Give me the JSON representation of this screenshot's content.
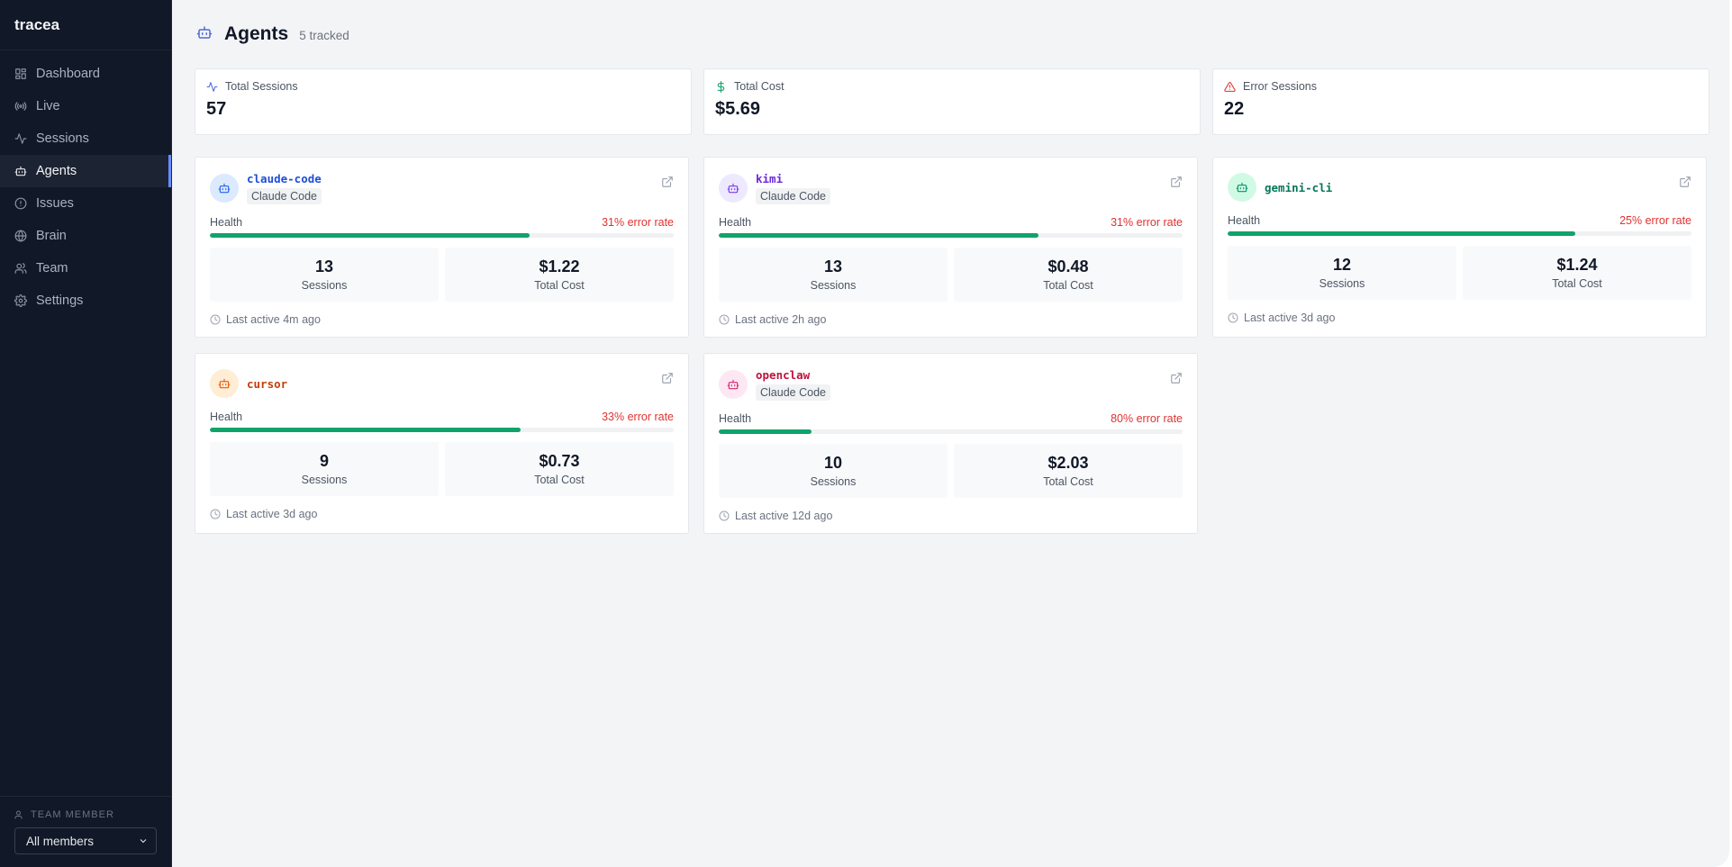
{
  "app": {
    "brand": "tracea"
  },
  "sidebar": {
    "items": [
      {
        "label": "Dashboard",
        "icon": "grid-icon"
      },
      {
        "label": "Live",
        "icon": "radio-icon"
      },
      {
        "label": "Sessions",
        "icon": "activity-icon"
      },
      {
        "label": "Agents",
        "icon": "robot-icon",
        "active": true
      },
      {
        "label": "Issues",
        "icon": "alert-circle-icon"
      },
      {
        "label": "Brain",
        "icon": "globe-icon"
      },
      {
        "label": "Team",
        "icon": "users-icon"
      },
      {
        "label": "Settings",
        "icon": "gear-icon"
      }
    ],
    "footer": {
      "label": "TEAM MEMBER",
      "select_value": "All members"
    }
  },
  "header": {
    "title": "Agents",
    "subtitle": "5 tracked"
  },
  "stats": [
    {
      "label": "Total Sessions",
      "value": "57",
      "icon": "activity-icon",
      "color": "#4f6bd8"
    },
    {
      "label": "Total Cost",
      "value": "$5.69",
      "icon": "dollar-icon",
      "color": "#10a36b"
    },
    {
      "label": "Error Sessions",
      "value": "22",
      "icon": "warning-icon",
      "color": "#e0322f"
    }
  ],
  "agents": [
    {
      "name": "claude-code",
      "badge": "Claude Code",
      "name_color": "#1d4ed8",
      "avatar_bg": "#dbeafe",
      "avatar_color": "#2563eb",
      "health_label": "Health",
      "error_rate": "31% error rate",
      "health_pct": 69,
      "sessions": "13",
      "sessions_label": "Sessions",
      "cost": "$1.22",
      "cost_label": "Total Cost",
      "last_active": "Last active 4m ago"
    },
    {
      "name": "kimi",
      "badge": "Claude Code",
      "name_color": "#6d28d9",
      "avatar_bg": "#ede9fe",
      "avatar_color": "#7c3aed",
      "health_label": "Health",
      "error_rate": "31% error rate",
      "health_pct": 69,
      "sessions": "13",
      "sessions_label": "Sessions",
      "cost": "$0.48",
      "cost_label": "Total Cost",
      "last_active": "Last active 2h ago"
    },
    {
      "name": "gemini-cli",
      "badge": "",
      "name_color": "#047857",
      "avatar_bg": "#d1fae5",
      "avatar_color": "#059669",
      "health_label": "Health",
      "error_rate": "25% error rate",
      "health_pct": 75,
      "sessions": "12",
      "sessions_label": "Sessions",
      "cost": "$1.24",
      "cost_label": "Total Cost",
      "last_active": "Last active 3d ago"
    },
    {
      "name": "cursor",
      "badge": "",
      "name_color": "#c2410c",
      "avatar_bg": "#ffedd5",
      "avatar_color": "#ea580c",
      "health_label": "Health",
      "error_rate": "33% error rate",
      "health_pct": 67,
      "sessions": "9",
      "sessions_label": "Sessions",
      "cost": "$0.73",
      "cost_label": "Total Cost",
      "last_active": "Last active 3d ago"
    },
    {
      "name": "openclaw",
      "badge": "Claude Code",
      "name_color": "#be123c",
      "avatar_bg": "#fce7f3",
      "avatar_color": "#db2777",
      "health_label": "Health",
      "error_rate": "80% error rate",
      "health_pct": 20,
      "sessions": "10",
      "sessions_label": "Sessions",
      "cost": "$2.03",
      "cost_label": "Total Cost",
      "last_active": "Last active 12d ago"
    }
  ]
}
